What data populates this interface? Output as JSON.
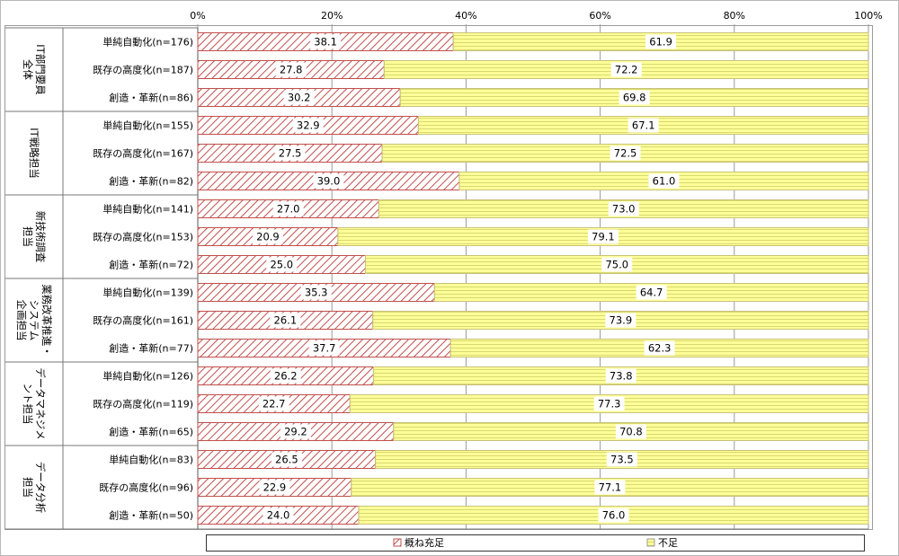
{
  "chart_data": {
    "type": "bar",
    "stacked": true,
    "orientation": "horizontal",
    "xlim": [
      0,
      100
    ],
    "x_ticks": [
      "0%",
      "20%",
      "40%",
      "60%",
      "80%",
      "100%"
    ],
    "groups": [
      {
        "label_lines": [
          "IT部門要員",
          "全体"
        ],
        "rows": [
          {
            "label": "単純自動化(n=176)",
            "values": [
              38.1,
              61.9
            ]
          },
          {
            "label": "既存の高度化(n=187)",
            "values": [
              27.8,
              72.2
            ]
          },
          {
            "label": "創造・革新(n=86)",
            "values": [
              30.2,
              69.8
            ]
          }
        ]
      },
      {
        "label_lines": [
          "IT戦略担当"
        ],
        "rows": [
          {
            "label": "単純自動化(n=155)",
            "values": [
              32.9,
              67.1
            ]
          },
          {
            "label": "既存の高度化(n=167)",
            "values": [
              27.5,
              72.5
            ]
          },
          {
            "label": "創造・革新(n=82)",
            "values": [
              39.0,
              61.0
            ]
          }
        ]
      },
      {
        "label_lines": [
          "新技術調査",
          "担当"
        ],
        "rows": [
          {
            "label": "単純自動化(n=141)",
            "values": [
              27.0,
              73.0
            ]
          },
          {
            "label": "既存の高度化(n=153)",
            "values": [
              20.9,
              79.1
            ]
          },
          {
            "label": "創造・革新(n=72)",
            "values": [
              25.0,
              75.0
            ]
          }
        ]
      },
      {
        "label_lines": [
          "業務改革推進・",
          "システム",
          "企画担当"
        ],
        "rows": [
          {
            "label": "単純自動化(n=139)",
            "values": [
              35.3,
              64.7
            ]
          },
          {
            "label": "既存の高度化(n=161)",
            "values": [
              26.1,
              73.9
            ]
          },
          {
            "label": "創造・革新(n=77)",
            "values": [
              37.7,
              62.3
            ]
          }
        ]
      },
      {
        "label_lines": [
          "データマネジメ",
          "ント担当"
        ],
        "rows": [
          {
            "label": "単純自動化(n=126)",
            "values": [
              26.2,
              73.8
            ]
          },
          {
            "label": "既存の高度化(n=119)",
            "values": [
              22.7,
              77.3
            ]
          },
          {
            "label": "創造・革新(n=65)",
            "values": [
              29.2,
              70.8
            ]
          }
        ]
      },
      {
        "label_lines": [
          "データ分析",
          "担当"
        ],
        "rows": [
          {
            "label": "単純自動化(n=83)",
            "values": [
              26.5,
              73.5
            ]
          },
          {
            "label": "既存の高度化(n=96)",
            "values": [
              22.9,
              77.1
            ]
          },
          {
            "label": "創造・革新(n=50)",
            "values": [
              24.0,
              76.0
            ]
          }
        ]
      }
    ],
    "series": [
      {
        "name": "概ね充足",
        "color": "#c0504d",
        "pattern": "diagonal-hatch"
      },
      {
        "name": "不足",
        "color": "#ffff99",
        "pattern": "horizontal-lines"
      }
    ],
    "legend": "bottom"
  }
}
